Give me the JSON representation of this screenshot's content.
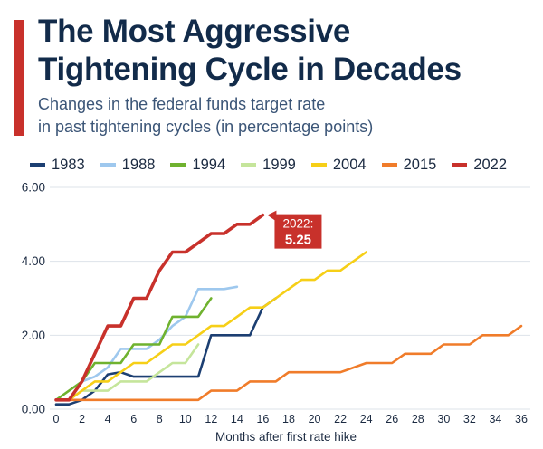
{
  "title": "The Most Aggressive\nTightening Cycle in Decades",
  "subtitle": "Changes in the federal funds target rate\nin past tightening cycles (in percentage points)",
  "colors": {
    "accent": "#c8312b",
    "grid": "#dde3ea",
    "axis_text": "#1b2a41"
  },
  "annotation": {
    "label": "2022:",
    "value": "5.25",
    "series": "2022"
  },
  "chart_data": {
    "type": "line",
    "title": "",
    "xlabel": "Months after first rate hike",
    "ylabel": "",
    "xlim": [
      0,
      36
    ],
    "ylim": [
      0,
      6
    ],
    "x_ticks": [
      0,
      2,
      4,
      6,
      8,
      10,
      12,
      14,
      16,
      18,
      20,
      22,
      24,
      26,
      28,
      30,
      32,
      34,
      36
    ],
    "y_ticks": [
      0,
      2,
      4,
      6
    ],
    "y_tick_labels": [
      "0.00",
      "2.00",
      "4.00",
      "6.00"
    ],
    "grid": "horizontal",
    "legend_position": "top",
    "series": [
      {
        "name": "1983",
        "color": "#1c3f72",
        "x": [
          0,
          1,
          2,
          3,
          4,
          5,
          6,
          7,
          8,
          9,
          10,
          11,
          12,
          13,
          14,
          15,
          16,
          17
        ],
        "y": [
          0.13,
          0.13,
          0.25,
          0.5,
          0.94,
          1.0,
          0.88,
          0.88,
          0.88,
          0.88,
          0.88,
          0.88,
          2.0,
          2.0,
          2.0,
          2.0,
          2.75,
          3.0
        ]
      },
      {
        "name": "1988",
        "color": "#9ec8ee",
        "x": [
          0,
          1,
          2,
          3,
          4,
          5,
          6,
          7,
          8,
          9,
          10,
          11,
          12,
          13,
          14
        ],
        "y": [
          0.25,
          0.25,
          0.75,
          0.88,
          1.13,
          1.63,
          1.63,
          1.63,
          1.88,
          2.25,
          2.5,
          3.25,
          3.25,
          3.25,
          3.31
        ]
      },
      {
        "name": "1994",
        "color": "#6fb22f",
        "x": [
          0,
          1,
          2,
          3,
          4,
          5,
          6,
          7,
          8,
          9,
          10,
          11,
          12
        ],
        "y": [
          0.25,
          0.5,
          0.75,
          1.25,
          1.25,
          1.25,
          1.75,
          1.75,
          1.75,
          2.5,
          2.5,
          2.5,
          3.0
        ]
      },
      {
        "name": "1999",
        "color": "#c5e59b",
        "x": [
          0,
          1,
          2,
          3,
          4,
          5,
          6,
          7,
          8,
          9,
          10,
          11
        ],
        "y": [
          0.25,
          0.25,
          0.5,
          0.5,
          0.5,
          0.75,
          0.75,
          0.75,
          1.0,
          1.25,
          1.25,
          1.75
        ]
      },
      {
        "name": "2004",
        "color": "#f6cf17",
        "x": [
          0,
          1,
          2,
          3,
          4,
          5,
          6,
          7,
          8,
          9,
          10,
          11,
          12,
          13,
          14,
          15,
          16,
          17,
          18,
          19,
          20,
          21,
          22,
          23,
          24
        ],
        "y": [
          0.25,
          0.25,
          0.5,
          0.75,
          0.75,
          1.0,
          1.25,
          1.25,
          1.5,
          1.75,
          1.75,
          2.0,
          2.25,
          2.25,
          2.5,
          2.75,
          2.75,
          3.0,
          3.25,
          3.5,
          3.5,
          3.75,
          3.75,
          4.0,
          4.25
        ]
      },
      {
        "name": "2015",
        "color": "#f07c2a",
        "x": [
          0,
          2,
          4,
          6,
          8,
          10,
          11,
          12,
          14,
          15,
          17,
          18,
          22,
          24,
          26,
          27,
          29,
          30,
          32,
          33,
          35,
          36
        ],
        "y": [
          0.25,
          0.25,
          0.25,
          0.25,
          0.25,
          0.25,
          0.25,
          0.5,
          0.5,
          0.75,
          0.75,
          1.0,
          1.0,
          1.25,
          1.25,
          1.5,
          1.5,
          1.75,
          1.75,
          2.0,
          2.0,
          2.25
        ]
      },
      {
        "name": "2022",
        "color": "#c8312b",
        "x": [
          0,
          1,
          2,
          3,
          4,
          5,
          6,
          7,
          8,
          9,
          10,
          11,
          12,
          13,
          14,
          15,
          16
        ],
        "y": [
          0.25,
          0.25,
          0.75,
          1.5,
          2.25,
          2.25,
          3.0,
          3.0,
          3.75,
          4.25,
          4.25,
          4.5,
          4.75,
          4.75,
          5.0,
          5.0,
          5.25
        ]
      }
    ]
  }
}
